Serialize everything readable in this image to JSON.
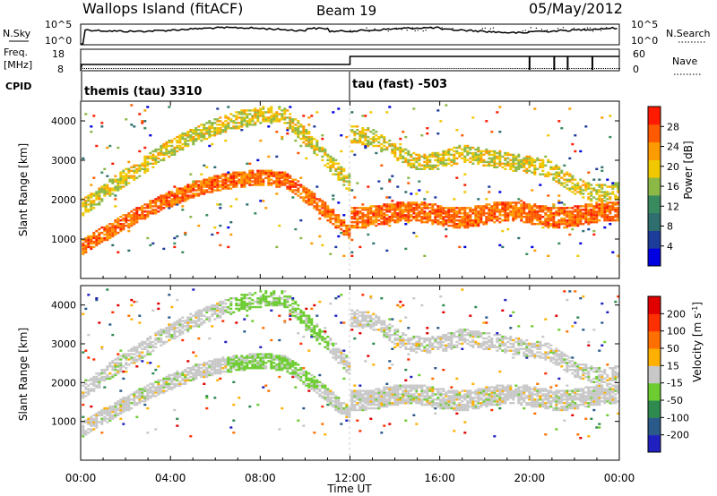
{
  "header": {
    "title": "Wallops Island (fitACF)",
    "beam": "Beam 19",
    "date": "05/May/2012"
  },
  "summary": {
    "nsky_label": "N.Sky",
    "nsky_ticks": [
      "10^5",
      "10^0"
    ],
    "nsearch_label": "N.Search",
    "nsearch_ticks": [
      "10^5",
      "10^0"
    ],
    "freq_label": "Freq.",
    "freq_unit": "[MHz]",
    "freq_ticks": [
      "18",
      "8"
    ],
    "nave_label": "Nave",
    "nave_ticks": [
      "60",
      "0"
    ],
    "cpid_label": "CPID",
    "cpid_1": "themis (tau) 3310",
    "cpid_2": "tau (fast) -503"
  },
  "chart_data": [
    {
      "type": "heatmap",
      "title": "Power",
      "ylabel": "Slant Range [km]",
      "yticks": [
        "1000",
        "2000",
        "3000",
        "4000"
      ],
      "xlim_hours": [
        0,
        24
      ],
      "colorbar_label": "Power [dB]",
      "colorbar_ticks": [
        "28",
        "24",
        "20",
        "16",
        "12",
        "8",
        "4"
      ],
      "colors": [
        "#0000e0",
        "#1e3c9a",
        "#2f6e6e",
        "#3a8a60",
        "#8cb846",
        "#f0c800",
        "#ff9a00",
        "#ff5a00",
        "#ff1a00"
      ]
    },
    {
      "type": "heatmap",
      "title": "Velocity",
      "ylabel": "Slant Range [km]",
      "yticks": [
        "1000",
        "2000",
        "3000",
        "4000"
      ],
      "xlim_hours": [
        0,
        24
      ],
      "colorbar_label": "Velocity [m s-1]",
      "colorbar_ticks": [
        "200",
        "100",
        "50",
        "15",
        "-15",
        "-50",
        "-100",
        "-200"
      ],
      "colors": [
        "#2020c0",
        "#2a5a8a",
        "#2f8a50",
        "#6ccc30",
        "#c8c8c8",
        "#ffb000",
        "#ff7000",
        "#ff3000",
        "#e00000"
      ]
    }
  ],
  "xaxis": {
    "ticks": [
      "00:00",
      "04:00",
      "08:00",
      "12:00",
      "16:00",
      "20:00",
      "00:00"
    ],
    "label": "Time UT"
  }
}
